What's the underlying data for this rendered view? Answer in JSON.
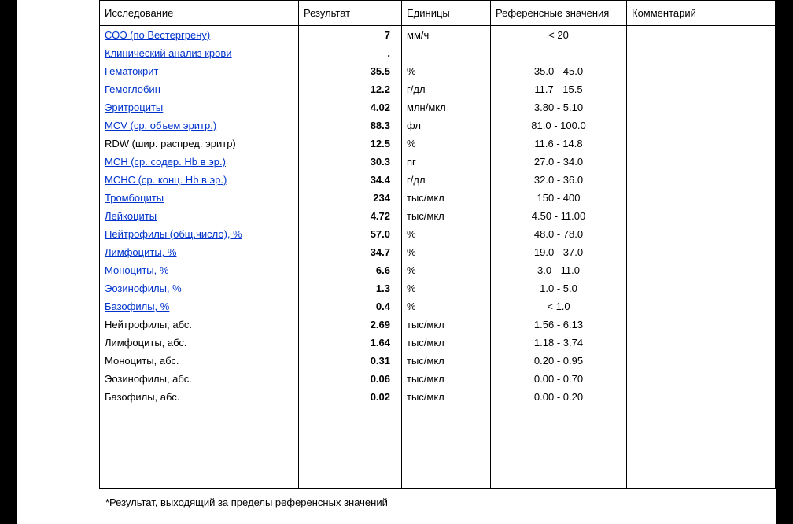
{
  "headers": {
    "test": "Исследование",
    "result": "Результат",
    "unit": "Единицы",
    "ref": "Референсные значения",
    "comment": "Комментарий"
  },
  "rows": [
    {
      "test": "СОЭ (по Вестергрену)",
      "link": true,
      "result": "7",
      "unit": "мм/ч",
      "ref": "< 20"
    },
    {
      "test": "Клинический анализ крови",
      "link": true,
      "result": ".",
      "unit": "",
      "ref": ""
    },
    {
      "test": "Гематокрит",
      "link": true,
      "result": "35.5",
      "unit": "%",
      "ref": "35.0 - 45.0"
    },
    {
      "test": "Гемоглобин",
      "link": true,
      "result": "12.2",
      "unit": "г/дл",
      "ref": "11.7 - 15.5"
    },
    {
      "test": "Эритроциты",
      "link": true,
      "result": "4.02",
      "unit": "млн/мкл",
      "ref": "3.80 - 5.10"
    },
    {
      "test": "MCV (ср. объем эритр.)",
      "link": true,
      "result": "88.3",
      "unit": "фл",
      "ref": "81.0 - 100.0"
    },
    {
      "test": "RDW (шир. распред. эритр)",
      "link": false,
      "result": "12.5",
      "unit": "%",
      "ref": "11.6 - 14.8"
    },
    {
      "test": "MCH (ср. содер. Hb в эр.)",
      "link": true,
      "result": "30.3",
      "unit": "пг",
      "ref": "27.0 - 34.0"
    },
    {
      "test": "МСНС (ср. конц. Hb в эр.)",
      "link": true,
      "result": "34.4",
      "unit": "г/дл",
      "ref": "32.0 - 36.0"
    },
    {
      "test": "Тромбоциты",
      "link": true,
      "result": "234",
      "unit": "тыс/мкл",
      "ref": "150 - 400"
    },
    {
      "test": "Лейкоциты",
      "link": true,
      "result": "4.72",
      "unit": "тыс/мкл",
      "ref": "4.50 - 11.00"
    },
    {
      "test": "Нейтрофилы (общ.число), %",
      "link": true,
      "result": "57.0",
      "unit": "%",
      "ref": "48.0 - 78.0"
    },
    {
      "test": "Лимфоциты, %",
      "link": true,
      "result": "34.7",
      "unit": "%",
      "ref": "19.0 - 37.0"
    },
    {
      "test": "Моноциты, %",
      "link": true,
      "result": "6.6",
      "unit": "%",
      "ref": "3.0 - 11.0"
    },
    {
      "test": "Эозинофилы, %",
      "link": true,
      "result": "1.3",
      "unit": "%",
      "ref": "1.0 - 5.0"
    },
    {
      "test": "Базофилы, %",
      "link": true,
      "result": "0.4",
      "unit": "%",
      "ref": "< 1.0"
    },
    {
      "test": "Нейтрофилы, абс.",
      "link": false,
      "result": "2.69",
      "unit": "тыс/мкл",
      "ref": "1.56 - 6.13"
    },
    {
      "test": "Лимфоциты, абс.",
      "link": false,
      "result": "1.64",
      "unit": "тыс/мкл",
      "ref": "1.18 - 3.74"
    },
    {
      "test": "Моноциты, абс.",
      "link": false,
      "result": "0.31",
      "unit": "тыс/мкл",
      "ref": "0.20 - 0.95"
    },
    {
      "test": "Эозинофилы, абс.",
      "link": false,
      "result": "0.06",
      "unit": "тыс/мкл",
      "ref": "0.00 - 0.70"
    },
    {
      "test": "Базофилы, абс.",
      "link": false,
      "result": "0.02",
      "unit": "тыс/мкл",
      "ref": "0.00 - 0.20"
    }
  ],
  "footnote": "*Результат, выходящий за пределы референсных значений",
  "colors": {
    "link": "#0033cc",
    "border": "#000000",
    "bg": "#ffffff"
  }
}
